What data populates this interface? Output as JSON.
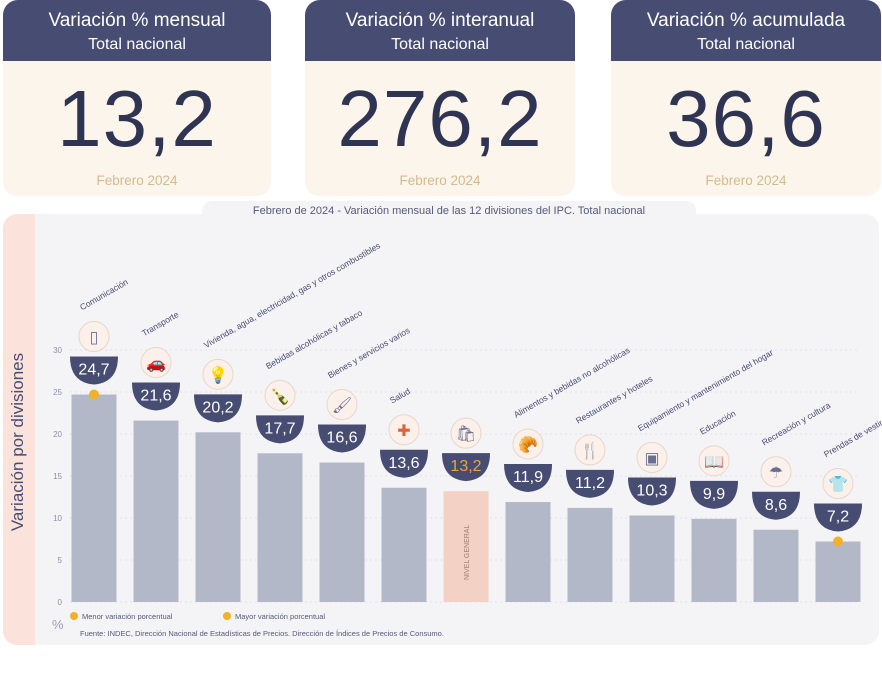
{
  "cards": [
    {
      "title": "Variación % mensual",
      "subtitle": "Total nacional",
      "value": "13,2",
      "date": "Febrero 2024"
    },
    {
      "title": "Variación % interanual",
      "subtitle": "Total nacional",
      "value": "276,2",
      "date": "Febrero 2024"
    },
    {
      "title": "Variación % acumulada",
      "subtitle": "Total nacional",
      "value": "36,6",
      "date": "Febrero 2024"
    }
  ],
  "chart_data": {
    "type": "bar",
    "title": "Febrero de 2024 - Variación mensual de las 12 divisiones del IPC. Total nacional",
    "ylabel": "Variación por divisiones",
    "yunit": "%",
    "ylim": [
      0,
      30
    ],
    "yticks": [
      "0",
      "5",
      "10",
      "15",
      "20",
      "25",
      "30"
    ],
    "categories": [
      "Comunicación",
      "Transporte",
      "Vivienda, agua, electricidad, gas y otros combustibles",
      "Bebidas alcohólicas y tabaco",
      "Bienes y servicios varios",
      "Salud",
      "NIVEL GENERAL",
      "Alimentos y bebidas no alcohólicas",
      "Restaurantes y hoteles",
      "Equipamiento y mantenimiento del hogar",
      "Educación",
      "Recreación y cultura",
      "Prendas de vestir y calzado"
    ],
    "values": [
      24.7,
      21.6,
      20.2,
      17.7,
      16.6,
      13.6,
      13.2,
      11.9,
      11.2,
      10.3,
      9.9,
      8.6,
      7.2
    ],
    "value_labels": [
      "24,7",
      "21,6",
      "20,2",
      "17,7",
      "16,6",
      "13,6",
      "13,2",
      "11,9",
      "11,2",
      "10,3",
      "9,9",
      "8,6",
      "7,2"
    ],
    "highlight_index": 6,
    "colors": {
      "bar": "#b2b8c8",
      "highlight_bar": "#f3d2c5",
      "badge": "#474c72",
      "highlight_text": "#f2a236",
      "marker": "#f2b127"
    },
    "legend": [
      "Menor variación porcentual",
      "Mayor variación porcentual"
    ],
    "source": "Fuente: INDEC, Dirección Nacional de Estadísticas de Precios. Dirección de Índices de Precios de Consumo.",
    "icons": [
      "phone-icon",
      "car-icon",
      "lightbulb-icon",
      "bottles-icon",
      "brush-icon",
      "medical-cross-icon",
      "shopping-bag-icon",
      "food-icon",
      "cutlery-icon",
      "appliance-icon",
      "book-icon",
      "umbrella-icon",
      "shirt-icon"
    ]
  }
}
